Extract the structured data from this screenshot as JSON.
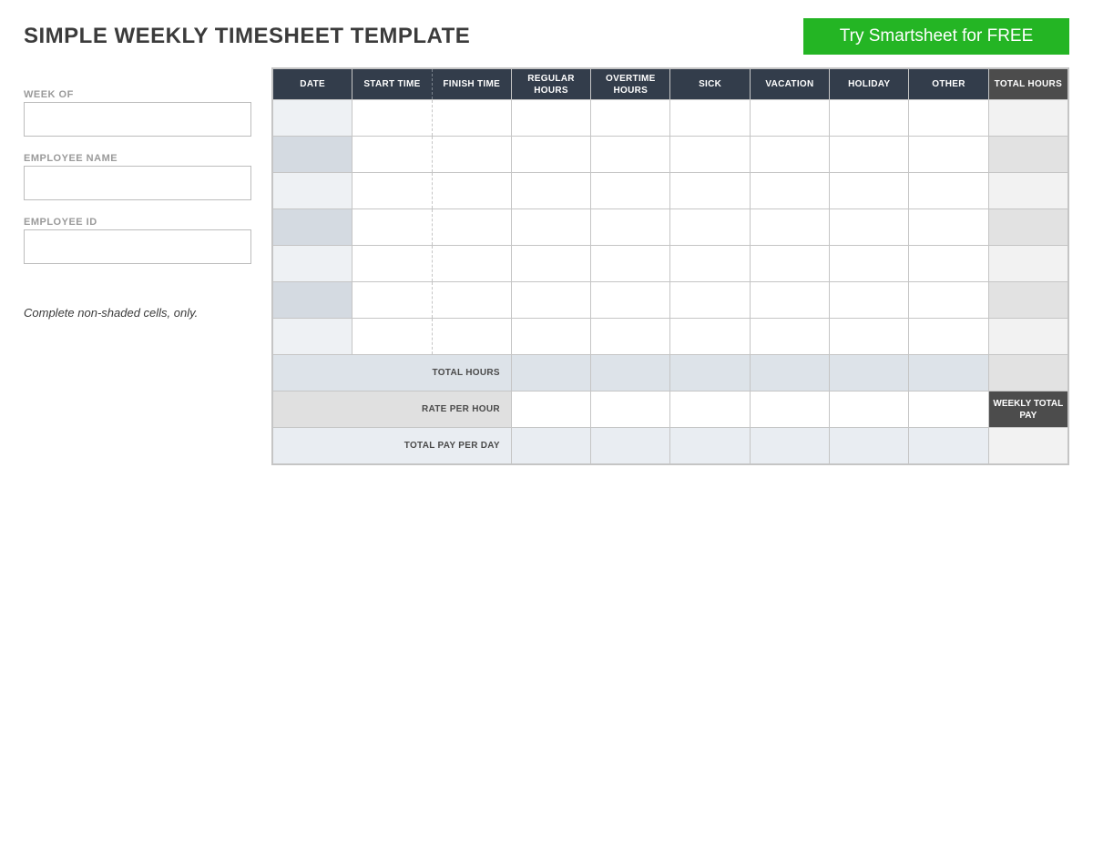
{
  "title": "SIMPLE WEEKLY TIMESHEET TEMPLATE",
  "cta": {
    "label": "Try Smartsheet for FREE"
  },
  "left": {
    "week_of_label": "WEEK OF",
    "employee_name_label": "EMPLOYEE NAME",
    "employee_id_label": "EMPLOYEE ID",
    "note": "Complete non-shaded cells, only."
  },
  "table": {
    "headers": {
      "date": "DATE",
      "start_time": "START TIME",
      "finish_time": "FINISH TIME",
      "regular_hours": "REGULAR HOURS",
      "overtime_hours": "OVERTIME HOURS",
      "sick": "SICK",
      "vacation": "VACATION",
      "holiday": "HOLIDAY",
      "other": "OTHER",
      "total_hours": "TOTAL HOURS"
    },
    "row_count": 7,
    "summary": {
      "total_hours_label": "TOTAL HOURS",
      "rate_per_hour_label": "RATE PER HOUR",
      "total_pay_per_day_label": "TOTAL PAY PER DAY",
      "weekly_total_pay_label": "WEEKLY TOTAL PAY"
    }
  },
  "colors": {
    "header_bg": "#333d4b",
    "header_total_bg": "#4c4c4c",
    "cta_bg": "#24b524",
    "date_cell_bg": "#eef1f4",
    "date_cell_bg_alt": "#d4dae1",
    "total_cell_bg": "#f2f2f2",
    "total_cell_bg_alt": "#e2e2e2",
    "summary_bg": "#dde3e9",
    "border": "#c5c5c5"
  }
}
